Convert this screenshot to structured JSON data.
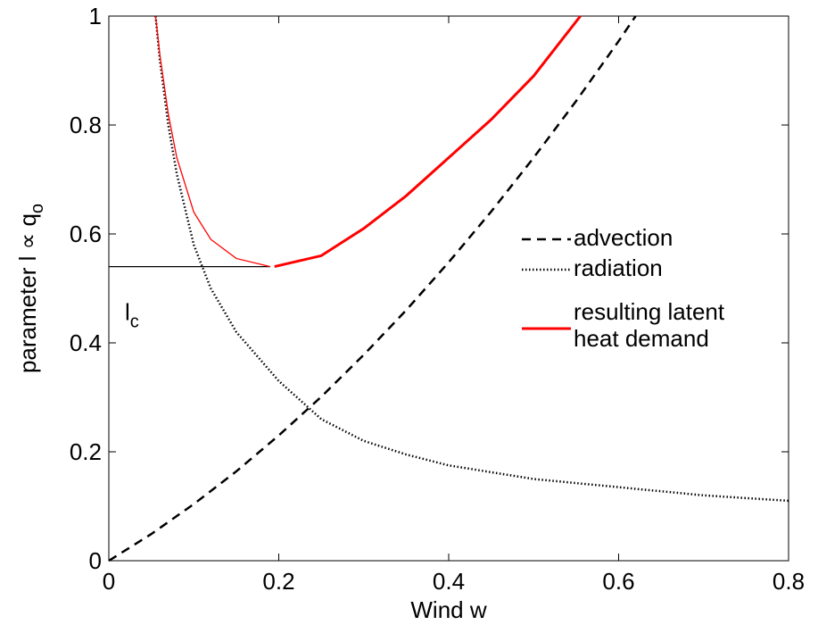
{
  "chart_data": {
    "type": "line",
    "xlabel": "Wind w",
    "ylabel": "parameter l ∝ q",
    "ylabel_subscript": "o",
    "xlim": [
      0,
      0.8
    ],
    "ylim": [
      0,
      1
    ],
    "xticks": [
      0,
      0.2,
      0.4,
      0.6,
      0.8
    ],
    "yticks": [
      0,
      0.2,
      0.4,
      0.6,
      0.8,
      1
    ],
    "series": [
      {
        "name": "advection",
        "color": "#000000",
        "style": "dashed",
        "x": [
          0,
          0.05,
          0.1,
          0.15,
          0.2,
          0.25,
          0.3,
          0.35,
          0.4,
          0.45,
          0.5,
          0.55,
          0.6,
          0.62
        ],
        "values": [
          0,
          0.049,
          0.104,
          0.164,
          0.23,
          0.301,
          0.378,
          0.46,
          0.548,
          0.641,
          0.74,
          0.844,
          0.954,
          1.0
        ]
      },
      {
        "name": "radiation",
        "color": "#000000",
        "style": "dotted",
        "x": [
          0.055,
          0.06,
          0.07,
          0.08,
          0.1,
          0.12,
          0.15,
          0.2,
          0.25,
          0.3,
          0.35,
          0.4,
          0.5,
          0.6,
          0.7,
          0.8
        ],
        "values": [
          1.0,
          0.92,
          0.8,
          0.71,
          0.58,
          0.5,
          0.42,
          0.33,
          0.26,
          0.22,
          0.195,
          0.175,
          0.15,
          0.135,
          0.12,
          0.11
        ]
      },
      {
        "name": "resulting latent heat demand",
        "color": "#ff0000",
        "style": "solid",
        "piece_widths": [
          1.3,
          3
        ],
        "x": [
          0.055,
          0.06,
          0.07,
          0.08,
          0.1,
          0.12,
          0.15,
          0.19,
          null,
          0.195,
          0.25,
          0.3,
          0.35,
          0.4,
          0.45,
          0.5,
          0.555
        ],
        "values": [
          1.0,
          0.93,
          0.82,
          0.74,
          0.64,
          0.59,
          0.555,
          0.54,
          null,
          0.54,
          0.56,
          0.61,
          0.67,
          0.74,
          0.81,
          0.89,
          1.0
        ]
      }
    ],
    "annotations": [
      {
        "text": "l",
        "subscript": "c",
        "y": 0.54,
        "x_range": [
          0,
          0.19
        ],
        "color": "#000000"
      }
    ]
  }
}
